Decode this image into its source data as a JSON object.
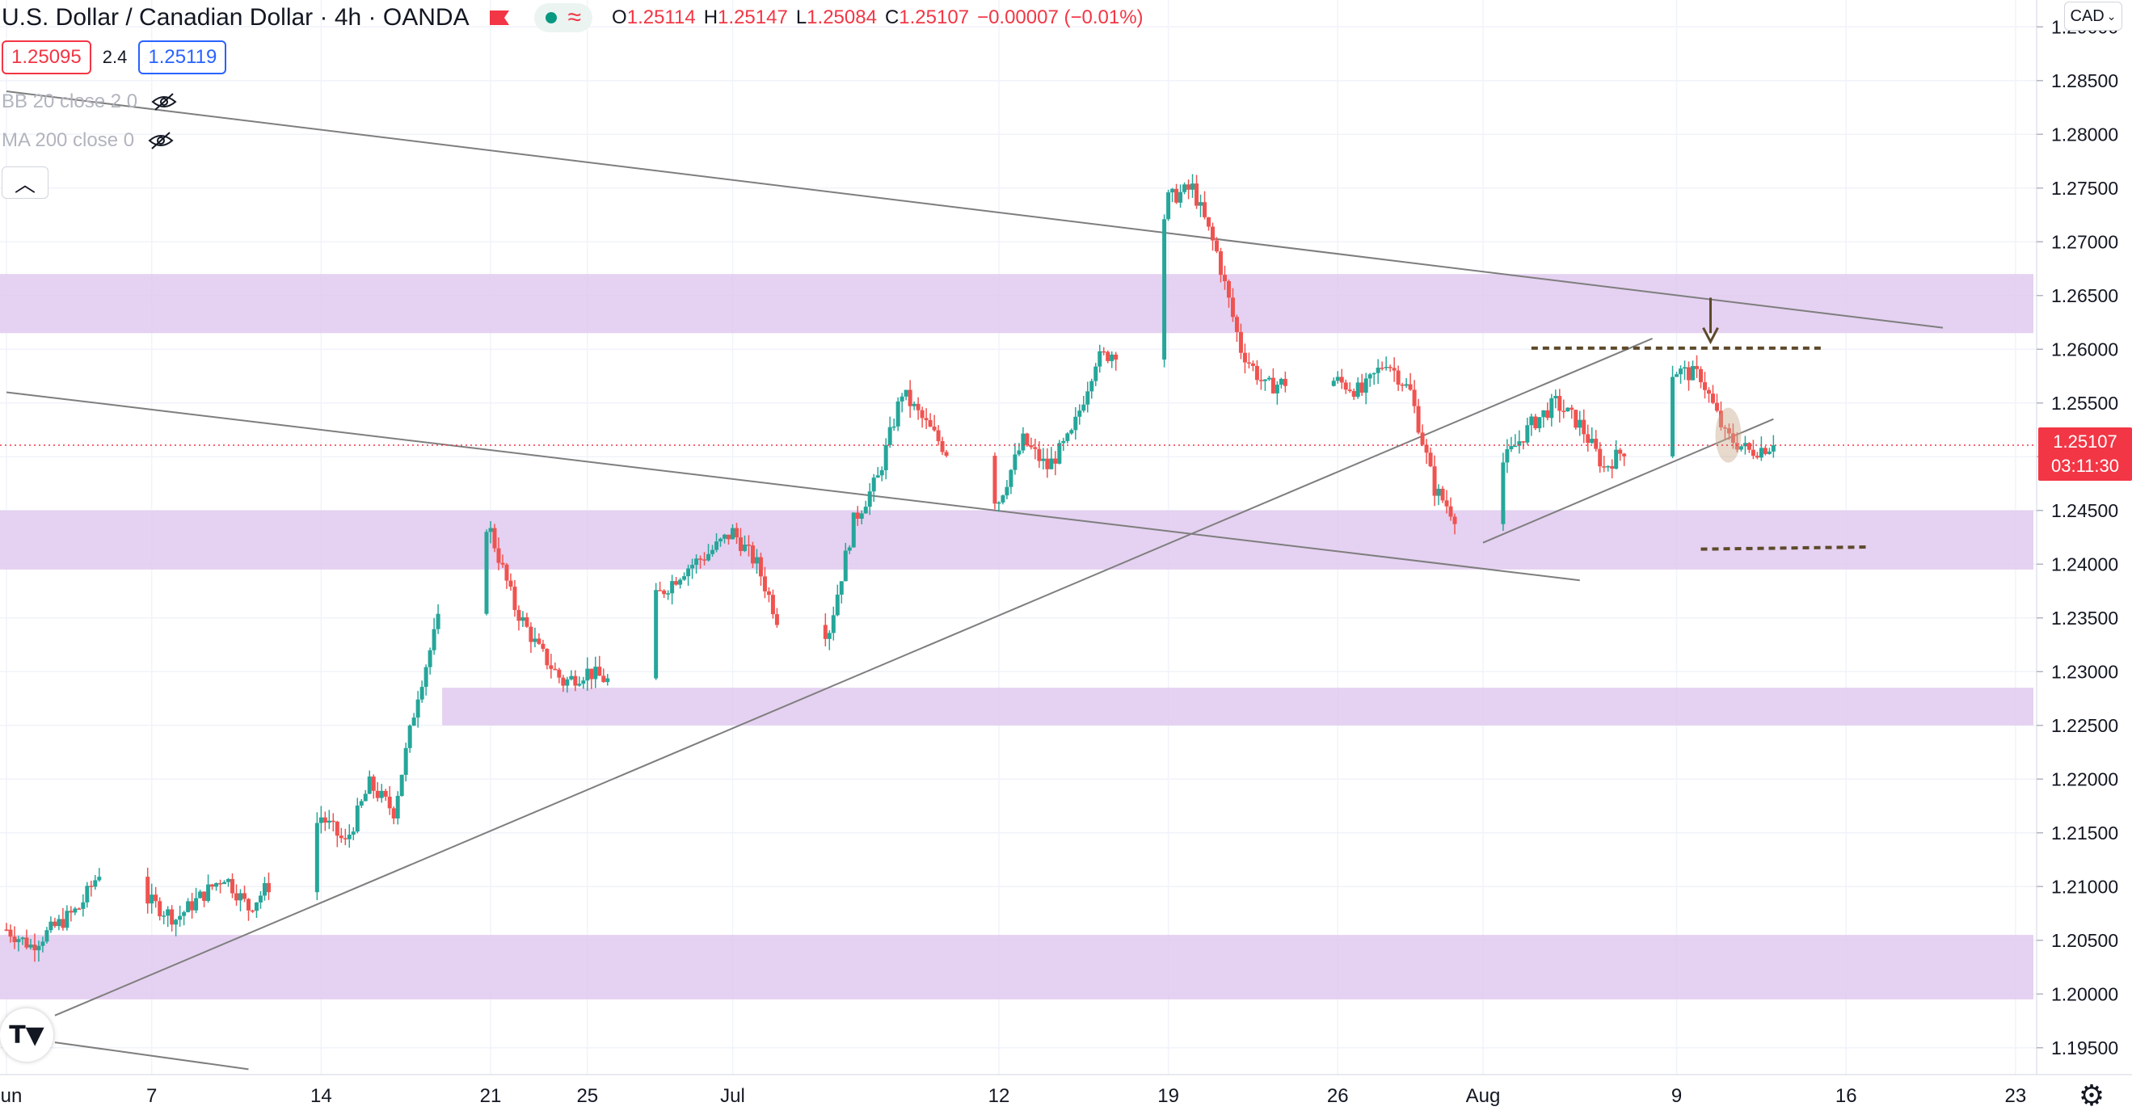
{
  "header": {
    "title": "U.S. Dollar / Canadian Dollar",
    "interval": "4h",
    "broker": "OANDA",
    "ohlc": {
      "o_label": "O",
      "o": "1.25114",
      "h_label": "H",
      "h": "1.25147",
      "l_label": "L",
      "l": "1.25084",
      "c_label": "C",
      "c": "1.25107",
      "change": "−0.00007 (−0.01%)"
    },
    "bid": "1.25095",
    "spread": "2.4",
    "ask": "1.25119"
  },
  "indicators": [
    {
      "label": "BB 20 close 2 0"
    },
    {
      "label": "MA 200 close 0"
    }
  ],
  "currency_button": "CAD",
  "current_price": {
    "price": "1.25107",
    "countdown": "03:11:30"
  },
  "colors": {
    "up": "#26a69a",
    "down": "#ef5350",
    "zone": "#e1c9ee",
    "trendline": "#7e7e7e",
    "annotation": "#5d4a2a",
    "price_line": "#f23645"
  },
  "icons": [
    "flag-icon",
    "market-status-icon",
    "eye-crossed-icon",
    "chevron-up-icon",
    "chevron-down-icon",
    "tradingview-logo-icon",
    "gear-icon",
    "down-arrow-icon"
  ],
  "chart_data": {
    "type": "candlestick",
    "title": "U.S. Dollar / Canadian Dollar",
    "ylim": [
      1.1925,
      1.2925
    ],
    "y_ticks": [
      "1.29000",
      "1.28500",
      "1.28000",
      "1.27500",
      "1.27000",
      "1.26500",
      "1.26000",
      "1.25500",
      "1.25000",
      "1.24500",
      "1.24000",
      "1.23500",
      "1.23000",
      "1.22500",
      "1.22000",
      "1.21500",
      "1.21000",
      "1.20500",
      "1.20000",
      "1.19500"
    ],
    "x_ticks": [
      {
        "label": "Jun",
        "date": "2021-06-01"
      },
      {
        "label": "7",
        "date": "2021-06-07"
      },
      {
        "label": "14",
        "date": "2021-06-14"
      },
      {
        "label": "21",
        "date": "2021-06-21"
      },
      {
        "label": "25",
        "date": "2021-06-25"
      },
      {
        "label": "Jul",
        "date": "2021-07-01"
      },
      {
        "label": "12",
        "date": "2021-07-12"
      },
      {
        "label": "19",
        "date": "2021-07-19"
      },
      {
        "label": "26",
        "date": "2021-07-26"
      },
      {
        "label": "Aug",
        "date": "2021-08-01"
      },
      {
        "label": "9",
        "date": "2021-08-09"
      },
      {
        "label": "16",
        "date": "2021-08-16"
      },
      {
        "label": "23",
        "date": "2021-08-23"
      }
    ],
    "close_path": [
      [
        "2021-06-01",
        1.206
      ],
      [
        "2021-06-02",
        1.2045
      ],
      [
        "2021-06-04",
        1.208
      ],
      [
        "2021-06-05",
        1.212
      ],
      [
        "2021-06-07",
        1.2085
      ],
      [
        "2021-06-08",
        1.207
      ],
      [
        "2021-06-10",
        1.211
      ],
      [
        "2021-06-11",
        1.208
      ],
      [
        "2021-06-13",
        1.213
      ],
      [
        "2021-06-14",
        1.2165
      ],
      [
        "2021-06-15",
        1.214
      ],
      [
        "2021-06-16",
        1.2195
      ],
      [
        "2021-06-17",
        1.217
      ],
      [
        "2021-06-18",
        1.228
      ],
      [
        "2021-06-19",
        1.236
      ],
      [
        "2021-06-20",
        1.247
      ],
      [
        "2021-06-21",
        1.243
      ],
      [
        "2021-06-22",
        1.236
      ],
      [
        "2021-06-23",
        1.232
      ],
      [
        "2021-06-24",
        1.229
      ],
      [
        "2021-06-25",
        1.23
      ],
      [
        "2021-06-26",
        1.229
      ],
      [
        "2021-06-27",
        1.235
      ],
      [
        "2021-06-29",
        1.2395
      ],
      [
        "2021-06-30",
        1.241
      ],
      [
        "2021-07-01",
        1.243
      ],
      [
        "2021-07-02",
        1.24
      ],
      [
        "2021-07-03",
        1.234
      ],
      [
        "2021-07-04",
        1.233
      ],
      [
        "2021-07-05",
        1.234
      ],
      [
        "2021-07-06",
        1.244
      ],
      [
        "2021-07-07",
        1.248
      ],
      [
        "2021-07-08",
        1.256
      ],
      [
        "2021-07-09",
        1.253
      ],
      [
        "2021-07-10",
        1.25
      ],
      [
        "2021-07-11",
        1.247
      ],
      [
        "2021-07-12",
        1.246
      ],
      [
        "2021-07-13",
        1.2515
      ],
      [
        "2021-07-14",
        1.249
      ],
      [
        "2021-07-15",
        1.252
      ],
      [
        "2021-07-16",
        1.259
      ],
      [
        "2021-07-17",
        1.26
      ],
      [
        "2021-07-18",
        1.264
      ],
      [
        "2021-07-19",
        1.274
      ],
      [
        "2021-07-20",
        1.275
      ],
      [
        "2021-07-21",
        1.269
      ],
      [
        "2021-07-22",
        1.26
      ],
      [
        "2021-07-23",
        1.2565
      ],
      [
        "2021-07-24",
        1.257
      ],
      [
        "2021-07-25",
        1.2575
      ],
      [
        "2021-07-26",
        1.257
      ],
      [
        "2021-07-27",
        1.256
      ],
      [
        "2021-07-28",
        1.259
      ],
      [
        "2021-07-29",
        1.256
      ],
      [
        "2021-07-30",
        1.247
      ],
      [
        "2021-07-31",
        1.244
      ],
      [
        "2021-08-01",
        1.247
      ],
      [
        "2021-08-02",
        1.25
      ],
      [
        "2021-08-03",
        1.253
      ],
      [
        "2021-08-04",
        1.255
      ],
      [
        "2021-08-05",
        1.253
      ],
      [
        "2021-08-06",
        1.249
      ],
      [
        "2021-08-07",
        1.251
      ],
      [
        "2021-08-08",
        1.257
      ],
      [
        "2021-08-09",
        1.258
      ],
      [
        "2021-08-10",
        1.2575
      ],
      [
        "2021-08-11",
        1.252
      ],
      [
        "2021-08-12",
        1.2505
      ],
      [
        "2021-08-13",
        1.25107
      ]
    ],
    "zones": [
      {
        "from": 1.2615,
        "to": 1.267
      },
      {
        "from": 1.2395,
        "to": 1.245
      },
      {
        "from": 1.225,
        "to": 1.2285,
        "start": "2021-06-19"
      },
      {
        "from": 1.1995,
        "to": 1.2055
      }
    ],
    "trendlines": [
      {
        "from": [
          "2021-06-01",
          1.284
        ],
        "to": [
          "2021-08-20",
          1.262
        ]
      },
      {
        "from": [
          "2021-06-01",
          1.256
        ],
        "to": [
          "2021-08-05",
          1.2385
        ]
      },
      {
        "from": [
          "2021-06-03",
          1.198
        ],
        "to": [
          "2021-08-08",
          1.261
        ]
      },
      {
        "from": [
          "2021-08-01",
          1.242
        ],
        "to": [
          "2021-08-13",
          1.2535
        ]
      },
      {
        "from": [
          "2021-06-03",
          1.1955
        ],
        "to": [
          "2021-06-11",
          1.193
        ]
      }
    ],
    "annotations": {
      "resistance_dashed": {
        "from": [
          "2021-08-03",
          1.2601
        ],
        "to": [
          "2021-08-15",
          1.2601
        ]
      },
      "target_dashed": {
        "from": [
          "2021-08-10",
          1.2414
        ],
        "to": [
          "2021-08-17",
          1.2416
        ]
      },
      "arrow_date": "2021-08-10",
      "highlight_date": "2021-08-11"
    },
    "last_price": 1.25107,
    "grid": true
  }
}
